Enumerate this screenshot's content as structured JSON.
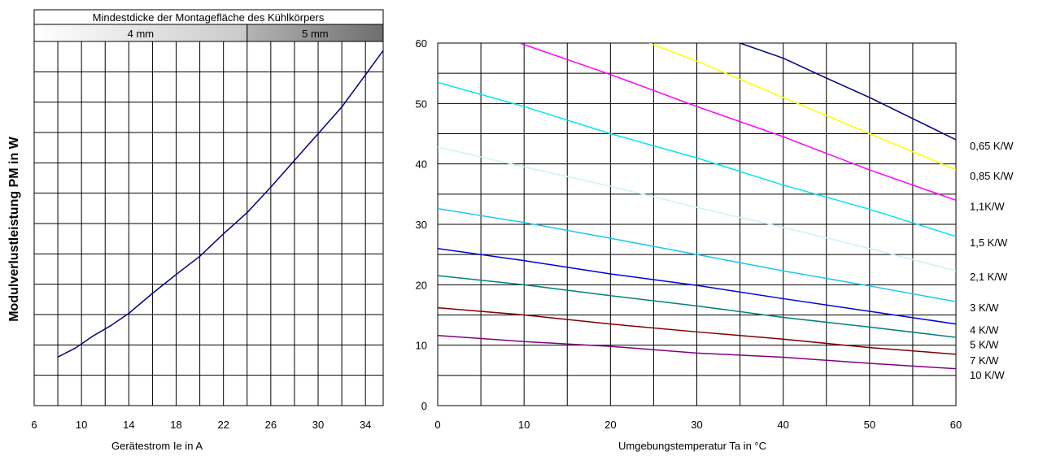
{
  "chart_data": [
    {
      "type": "line",
      "title": "",
      "header": {
        "title": "Mindestdicke der Montagefläche des Kühlkörpers",
        "bands": [
          {
            "label": "4 mm",
            "from": 6,
            "to": 24,
            "style": "light"
          },
          {
            "label": "5 mm",
            "from": 24,
            "to": 35.5,
            "style": "dark"
          }
        ]
      },
      "xlabel": "Gerätestrom Ie in A",
      "ylabel": "Modulverlustleistung PM in W",
      "xlim": [
        6,
        35.5
      ],
      "ylim": [
        0,
        60
      ],
      "xticks": [
        "6",
        "10",
        "14",
        "18",
        "22",
        "26",
        "30",
        "34"
      ],
      "x_tick_values": [
        6,
        10,
        14,
        18,
        22,
        26,
        30,
        34
      ],
      "x_grid": [
        6,
        8,
        10,
        12,
        14,
        16,
        18,
        20,
        22,
        24,
        26,
        28,
        30,
        32,
        34
      ],
      "y_grid_step": 5,
      "grid": true,
      "series": [
        {
          "color": "#000080",
          "x": [
            8,
            9.5,
            11,
            12.5,
            14,
            16,
            18,
            20,
            22,
            24,
            26,
            28,
            30,
            32,
            34,
            35.5
          ],
          "y": [
            8,
            9.5,
            11.5,
            13.2,
            15.2,
            18.5,
            21.6,
            24.6,
            28.3,
            31.8,
            36,
            40.4,
            44.8,
            49.2,
            54.5,
            58.5
          ]
        }
      ]
    },
    {
      "type": "line",
      "title": "",
      "xlabel": "Umgebungstemperatur Ta in °C",
      "ylabel": "",
      "xlim": [
        0,
        60
      ],
      "ylim": [
        0,
        60
      ],
      "xticks": [
        "0",
        "10",
        "20",
        "30",
        "40",
        "50",
        "60"
      ],
      "yticks": [
        "0",
        "10",
        "20",
        "30",
        "40",
        "50",
        "60"
      ],
      "x_grid_step": 5,
      "y_grid_step": 5,
      "grid": true,
      "series": [
        {
          "name": "0,65 K/W",
          "color": "#000080",
          "x": [
            35,
            40,
            45,
            50,
            55,
            60
          ],
          "y": [
            60,
            57.5,
            54.2,
            51,
            47.5,
            44
          ]
        },
        {
          "name": "0,85 K/W",
          "color": "#ffff00",
          "x": [
            24.5,
            30,
            40,
            50,
            60
          ],
          "y": [
            60,
            57,
            51,
            45,
            39
          ]
        },
        {
          "name": "1,1K/W",
          "color": "#ff00ff",
          "x": [
            9.5,
            20,
            30,
            40,
            50,
            60
          ],
          "y": [
            60,
            54.8,
            49.5,
            44.5,
            39,
            34
          ]
        },
        {
          "name": "1,5 K/W",
          "color": "#00e5ee",
          "x": [
            0,
            10,
            20,
            30,
            40,
            50,
            60
          ],
          "y": [
            53.5,
            49.5,
            45,
            41,
            36.5,
            32.5,
            28
          ]
        },
        {
          "name": "2,1 K/W",
          "color": "#c8f4f8",
          "x": [
            0,
            10,
            20,
            30,
            40,
            50,
            60
          ],
          "y": [
            42.8,
            39.5,
            36.3,
            32.8,
            29.5,
            26,
            22.3
          ]
        },
        {
          "name": "3 K/W",
          "color": "#1cc8ee",
          "x": [
            0,
            10,
            20,
            30,
            40,
            50,
            60
          ],
          "y": [
            32.6,
            30.3,
            27.7,
            25,
            22.3,
            19.8,
            17.2
          ]
        },
        {
          "name": "4 K/W",
          "color": "#0000dd",
          "x": [
            0,
            10,
            20,
            30,
            40,
            50,
            60
          ],
          "y": [
            26,
            24,
            21.8,
            19.9,
            17.7,
            15.6,
            13.5
          ]
        },
        {
          "name": "5 K/W",
          "color": "#008080",
          "x": [
            0,
            10,
            20,
            30,
            40,
            50,
            60
          ],
          "y": [
            21.5,
            20,
            18.2,
            16.5,
            14.6,
            13,
            11.3
          ]
        },
        {
          "name": "7 K/W",
          "color": "#800000",
          "x": [
            0,
            10,
            20,
            30,
            40,
            50,
            60
          ],
          "y": [
            16.2,
            15,
            13.5,
            12.2,
            11,
            9.6,
            8.5
          ]
        },
        {
          "name": "10 K/W",
          "color": "#800080",
          "x": [
            0,
            10,
            20,
            30,
            40,
            50,
            60
          ],
          "y": [
            11.6,
            10.6,
            9.8,
            8.7,
            8,
            7,
            6.1
          ]
        }
      ]
    }
  ]
}
